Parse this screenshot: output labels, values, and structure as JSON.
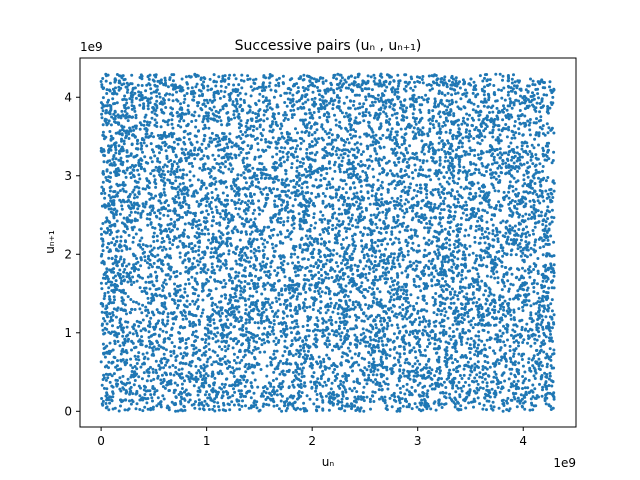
{
  "chart_data": {
    "type": "scatter",
    "title": "Successive pairs (uₙ , uₙ₊₁)",
    "xlabel": "uₙ",
    "ylabel": "uₙ₊₁",
    "x_offset_label": "1e9",
    "y_offset_label": "1e9",
    "xlim": [
      -200000000,
      4500000000
    ],
    "ylim": [
      -200000000,
      4500000000
    ],
    "xticks": [
      0,
      1000000000,
      2000000000,
      3000000000,
      4000000000
    ],
    "yticks": [
      0,
      1000000000,
      2000000000,
      3000000000,
      4000000000
    ],
    "xtick_labels": [
      "0",
      "1",
      "2",
      "3",
      "4"
    ],
    "ytick_labels": [
      "0",
      "1",
      "2",
      "3",
      "4"
    ],
    "grid": false,
    "legend": "none",
    "marker_color": "#1f77b4",
    "data_range": [
      0,
      4294967295
    ],
    "point_count": 10000
  }
}
